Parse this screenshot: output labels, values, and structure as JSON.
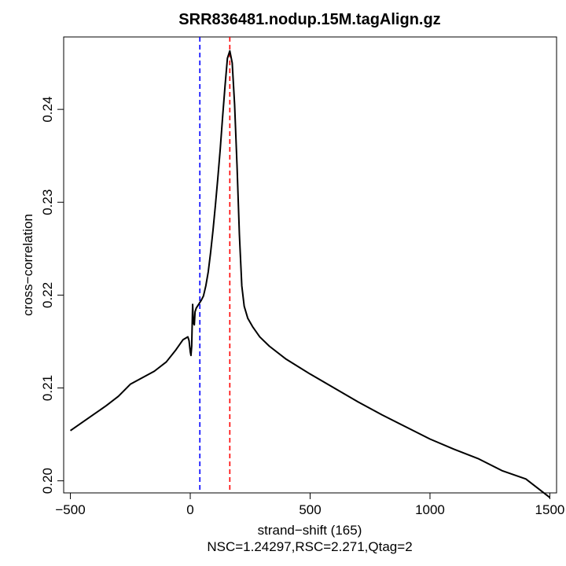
{
  "chart_data": {
    "type": "line",
    "title": "SRR836481.nodup.15M.tagAlign.gz",
    "xlabel": "strand−shift (165)",
    "ylabel": "cross−correlation",
    "subtitle": "NSC=1.24297,RSC=2.271,Qtag=2",
    "xlim": [
      -528,
      1528
    ],
    "ylim": [
      0.1987,
      0.2478
    ],
    "x_ticks": [
      -500,
      0,
      500,
      1000,
      1500
    ],
    "x_tick_labels": [
      "−500",
      "0",
      "500",
      "1000",
      "1500"
    ],
    "y_ticks": [
      0.2,
      0.21,
      0.22,
      0.23,
      0.24
    ],
    "y_tick_labels": [
      "0.20",
      "0.21",
      "0.22",
      "0.23",
      "0.24"
    ],
    "grid": false,
    "vlines": [
      {
        "x": 40,
        "color": "#0000ff",
        "style": "dashed"
      },
      {
        "x": 165,
        "color": "#ff0000",
        "style": "dashed"
      }
    ],
    "series": [
      {
        "color": "#000000",
        "points": [
          [
            -500,
            0.2054
          ],
          [
            -450,
            0.2063
          ],
          [
            -400,
            0.2072
          ],
          [
            -350,
            0.2081
          ],
          [
            -300,
            0.2091
          ],
          [
            -250,
            0.2104
          ],
          [
            -200,
            0.2111
          ],
          [
            -150,
            0.2118
          ],
          [
            -100,
            0.2128
          ],
          [
            -60,
            0.2141
          ],
          [
            -30,
            0.2152
          ],
          [
            -10,
            0.2155
          ],
          [
            -5,
            0.2151
          ],
          [
            0,
            0.2139
          ],
          [
            3,
            0.2135
          ],
          [
            6,
            0.2145
          ],
          [
            10,
            0.219
          ],
          [
            13,
            0.217
          ],
          [
            17,
            0.2168
          ],
          [
            20,
            0.2182
          ],
          [
            25,
            0.2186
          ],
          [
            35,
            0.219
          ],
          [
            45,
            0.2194
          ],
          [
            55,
            0.2199
          ],
          [
            65,
            0.221
          ],
          [
            75,
            0.2225
          ],
          [
            85,
            0.2246
          ],
          [
            95,
            0.227
          ],
          [
            105,
            0.2297
          ],
          [
            115,
            0.2326
          ],
          [
            125,
            0.2357
          ],
          [
            135,
            0.2392
          ],
          [
            145,
            0.2425
          ],
          [
            155,
            0.2455
          ],
          [
            165,
            0.2463
          ],
          [
            175,
            0.245
          ],
          [
            185,
            0.2405
          ],
          [
            195,
            0.234
          ],
          [
            205,
            0.2265
          ],
          [
            215,
            0.221
          ],
          [
            225,
            0.2188
          ],
          [
            240,
            0.2175
          ],
          [
            260,
            0.2166
          ],
          [
            290,
            0.2155
          ],
          [
            330,
            0.2145
          ],
          [
            400,
            0.2131
          ],
          [
            500,
            0.2115
          ],
          [
            600,
            0.21
          ],
          [
            700,
            0.2085
          ],
          [
            800,
            0.2071
          ],
          [
            900,
            0.2058
          ],
          [
            1000,
            0.2045
          ],
          [
            1100,
            0.2034
          ],
          [
            1200,
            0.2024
          ],
          [
            1300,
            0.2011
          ],
          [
            1400,
            0.2002
          ],
          [
            1500,
            0.1982
          ]
        ]
      }
    ]
  }
}
